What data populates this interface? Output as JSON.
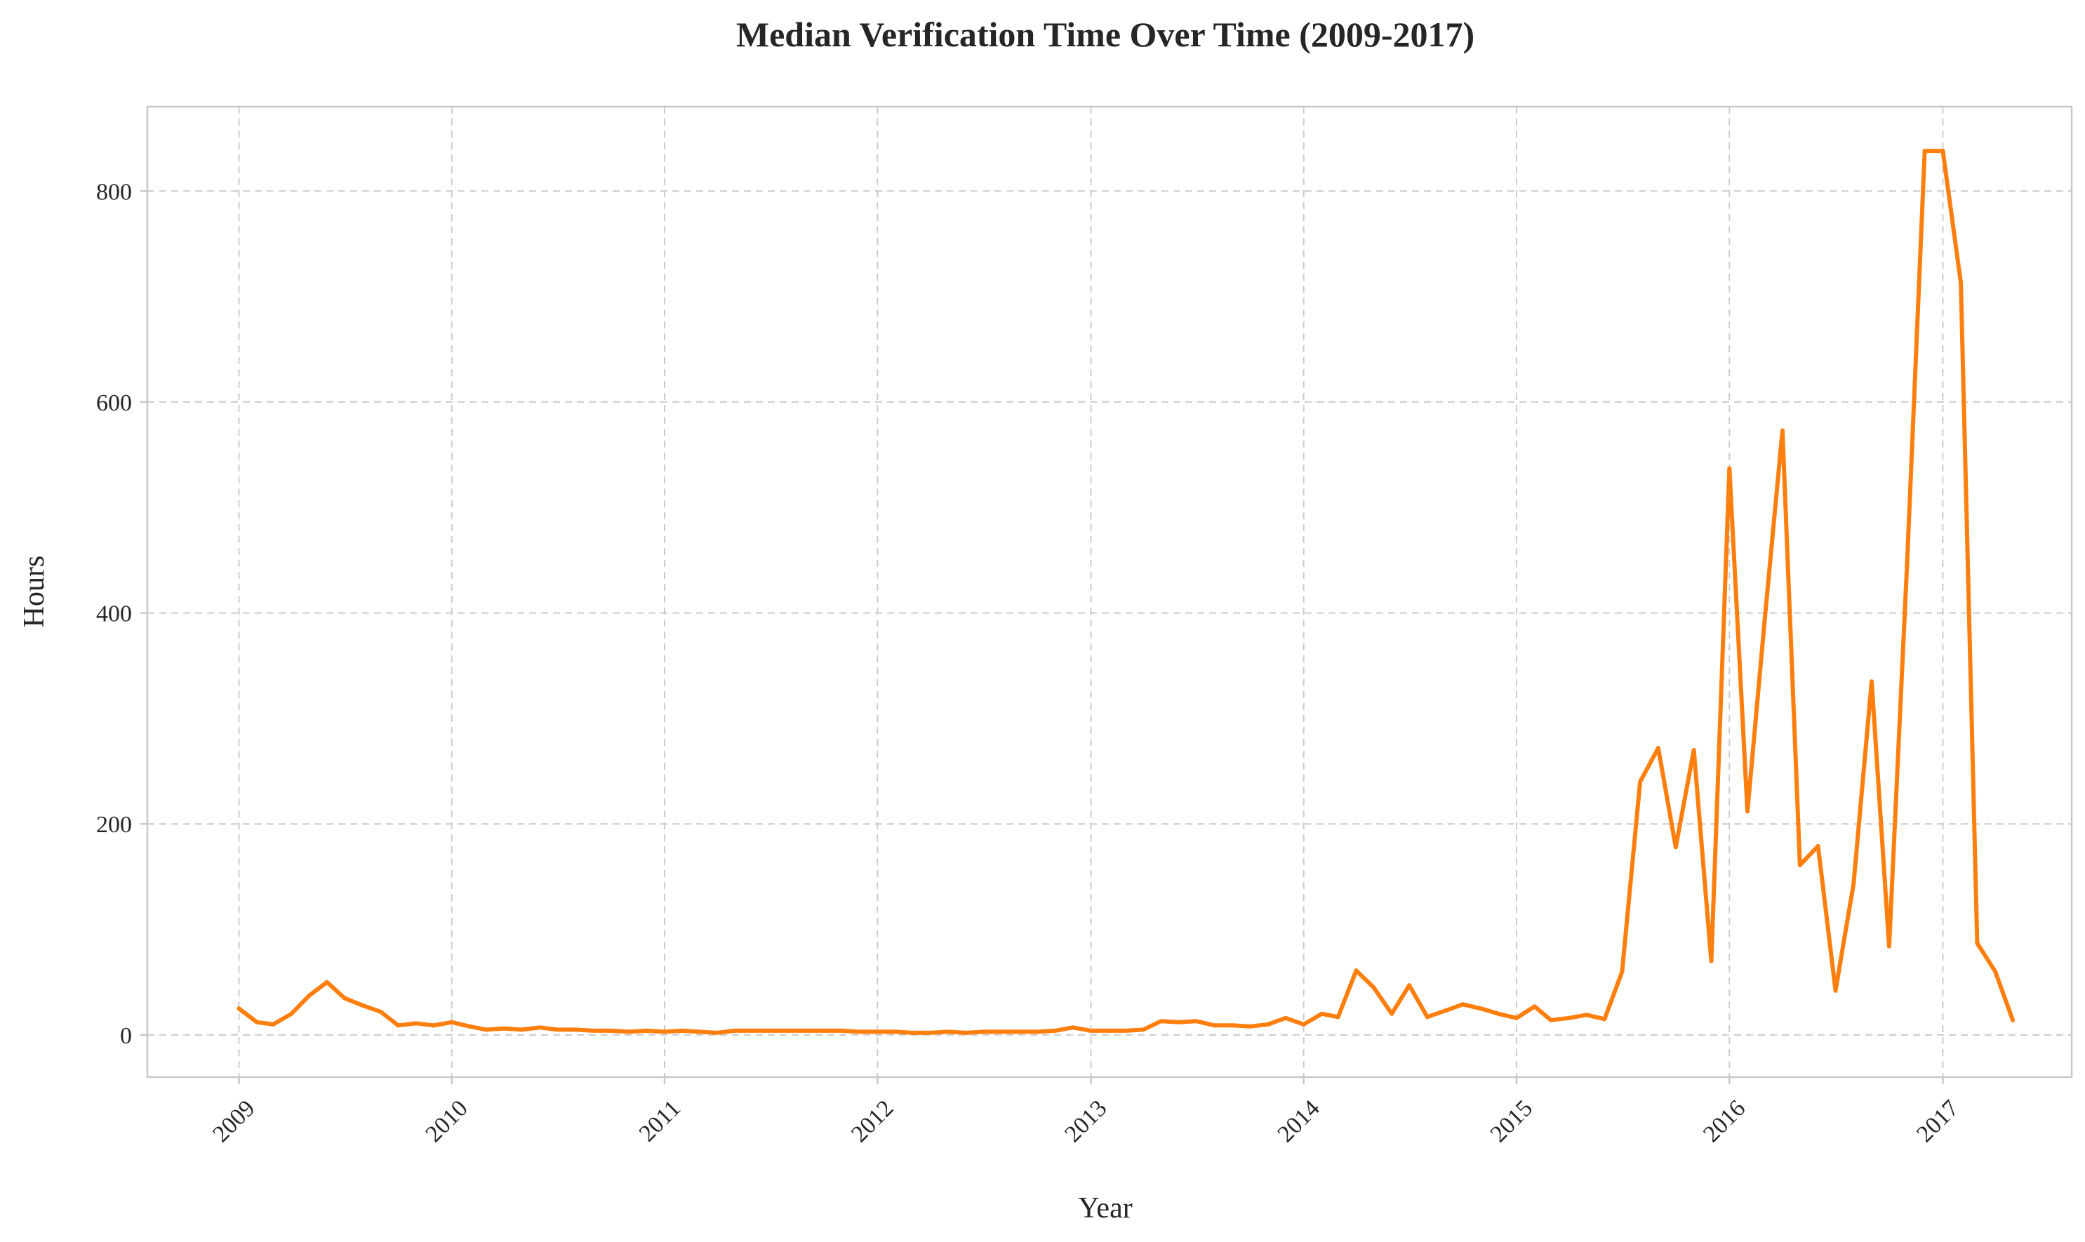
{
  "chart_data": {
    "type": "line",
    "title": "Median Verification Time Over Time (2009-2017)",
    "xlabel": "Year",
    "ylabel": "Hours",
    "x_ticks": [
      "2009",
      "2010",
      "2011",
      "2012",
      "2013",
      "2014",
      "2015",
      "2016",
      "2017"
    ],
    "y_ticks": [
      "0",
      "200",
      "400",
      "600",
      "800"
    ],
    "xlim": [
      "2008-07-28",
      "2017-08-10"
    ],
    "ylim": [
      -40,
      880
    ],
    "grid": true,
    "colors": {
      "line": "#ff7f0e",
      "grid": "#cccccc",
      "spine": "#c8c8c8"
    },
    "series": [
      {
        "x": [
          "2009-01",
          "2009-02",
          "2009-03",
          "2009-04",
          "2009-05",
          "2009-06",
          "2009-07",
          "2009-08",
          "2009-09",
          "2009-10",
          "2009-11",
          "2009-12",
          "2010-01",
          "2010-02",
          "2010-03",
          "2010-04",
          "2010-05",
          "2010-06",
          "2010-07",
          "2010-08",
          "2010-09",
          "2010-10",
          "2010-11",
          "2010-12",
          "2011-01",
          "2011-02",
          "2011-03",
          "2011-04",
          "2011-05",
          "2011-06",
          "2011-07",
          "2011-08",
          "2011-09",
          "2011-10",
          "2011-11",
          "2011-12",
          "2012-01",
          "2012-02",
          "2012-03",
          "2012-04",
          "2012-05",
          "2012-06",
          "2012-07",
          "2012-08",
          "2012-09",
          "2012-10",
          "2012-11",
          "2012-12",
          "2013-01",
          "2013-02",
          "2013-03",
          "2013-04",
          "2013-05",
          "2013-06",
          "2013-07",
          "2013-08",
          "2013-09",
          "2013-10",
          "2013-11",
          "2013-12",
          "2014-01",
          "2014-02",
          "2014-03",
          "2014-04",
          "2014-05",
          "2014-06",
          "2014-07",
          "2014-08",
          "2014-09",
          "2014-10",
          "2014-11",
          "2014-12",
          "2015-01",
          "2015-02",
          "2015-03",
          "2015-04",
          "2015-05",
          "2015-06",
          "2015-07",
          "2015-08",
          "2015-09",
          "2015-10",
          "2015-11",
          "2015-12",
          "2016-01",
          "2016-02",
          "2016-03",
          "2016-04",
          "2016-05",
          "2016-06",
          "2016-07",
          "2016-08",
          "2016-09",
          "2016-10",
          "2016-11",
          "2016-12",
          "2017-01",
          "2017-02",
          "2017-03",
          "2017-04",
          "2017-05"
        ],
        "y": [
          25,
          12,
          10,
          20,
          37,
          50,
          35,
          28,
          22,
          9,
          11,
          9,
          12,
          8,
          5,
          6,
          5,
          7,
          5,
          5,
          4,
          4,
          3,
          4,
          3,
          4,
          3,
          2,
          4,
          4,
          4,
          4,
          4,
          4,
          4,
          3,
          3,
          3,
          2,
          2,
          3,
          2,
          3,
          3,
          3,
          3,
          4,
          7,
          4,
          4,
          4,
          5,
          13,
          12,
          13,
          9,
          9,
          8,
          10,
          16,
          10,
          20,
          17,
          61,
          45,
          20,
          47,
          17,
          23,
          29,
          25,
          20,
          16,
          27,
          14,
          16,
          19,
          15,
          60,
          240,
          272,
          178,
          270,
          70,
          537,
          212,
          390,
          573,
          161,
          179,
          42,
          143,
          335,
          84,
          450,
          838,
          838,
          713,
          87,
          60,
          14
        ]
      }
    ]
  }
}
